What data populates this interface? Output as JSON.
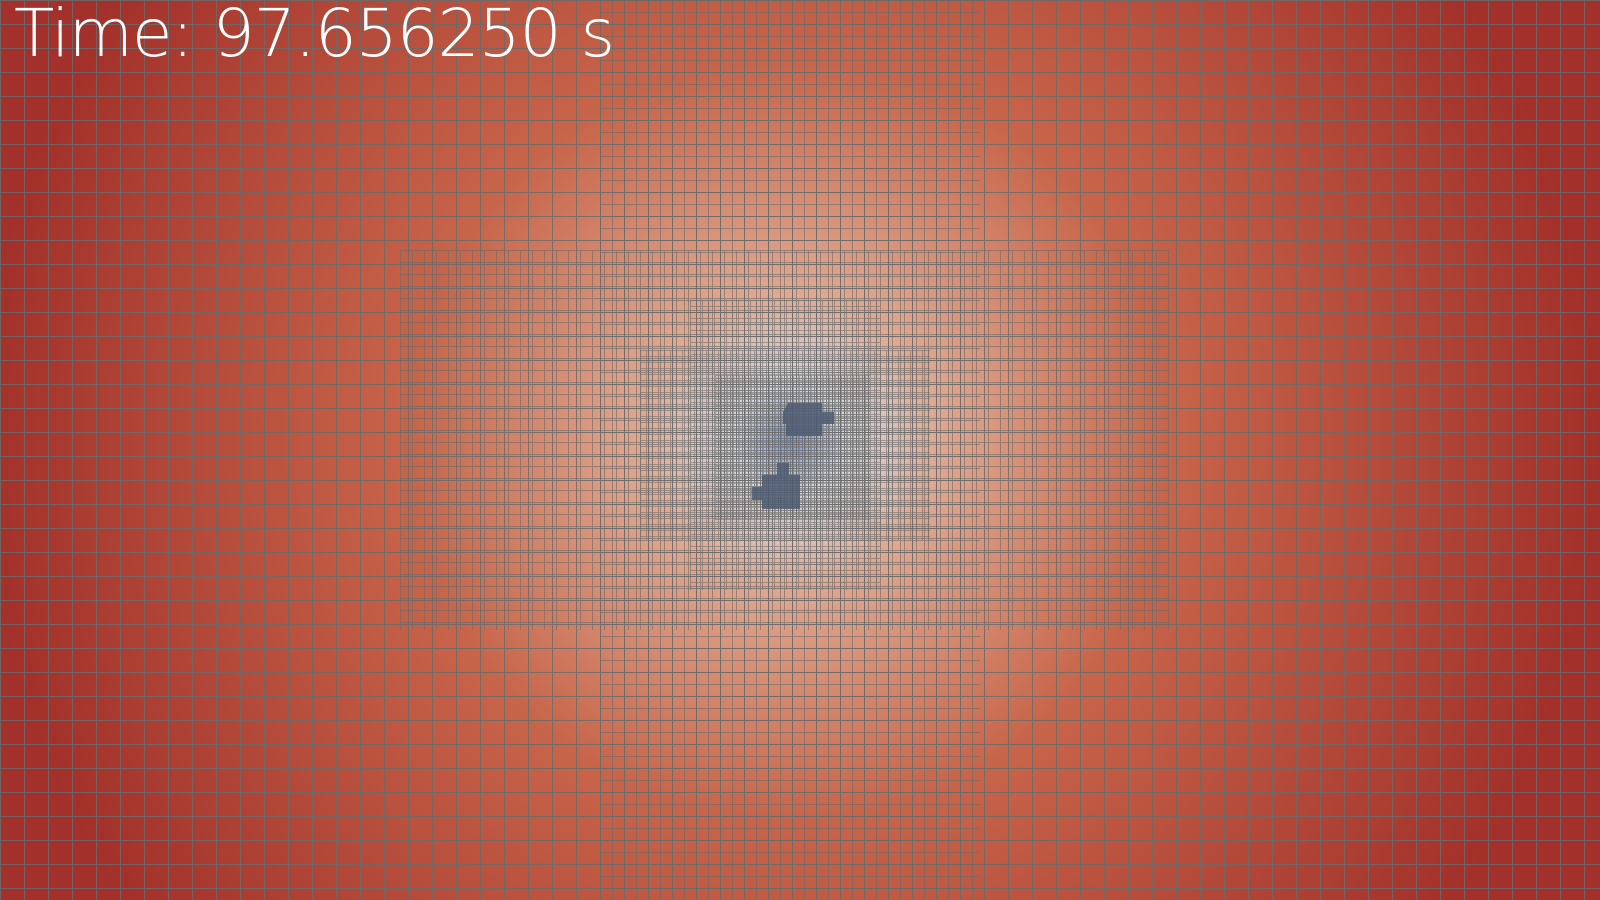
{
  "overlay": {
    "time_label": "Time: 97.656250 s"
  },
  "colormap": {
    "far": "#a3302a",
    "mid": "#c7654a",
    "near": "#e0a990",
    "core": "#d2d7df",
    "center": "#7b9bd6"
  },
  "mesh": {
    "line_color": "#6b6b6b",
    "blob_color": "#4f5c72"
  }
}
